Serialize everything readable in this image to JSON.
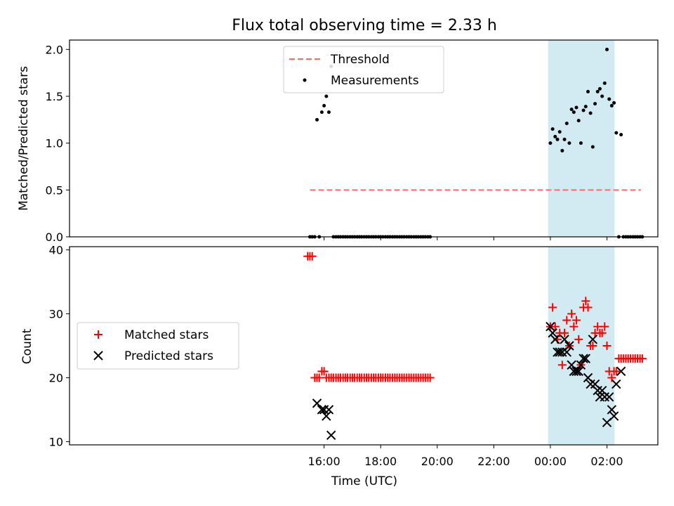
{
  "figure_title": "Flux total observing time = 2.33 h",
  "colors": {
    "threshold": "#ff6b6b",
    "measurement": "#000000",
    "matched": "#ff0000",
    "predicted": "#000000",
    "highlight": "#add8e6"
  },
  "chart_data": [
    {
      "type": "scatter",
      "title": "Flux total observing time = 2.33 h",
      "xlabel": "",
      "ylabel": "Matched/Predicted stars",
      "xlim": [
        -17.0,
        3.8
      ],
      "ylim": [
        0,
        2.1
      ],
      "grid": false,
      "legend_position": "top-center",
      "x_tick_values": [
        -8,
        -6,
        -4,
        -2,
        0,
        2
      ],
      "y_ticks": [
        "0.0",
        "0.5",
        "1.0",
        "1.5",
        "2.0"
      ],
      "highlight_span": [
        -0.08,
        2.27
      ],
      "threshold": {
        "name": "Threshold",
        "value": 0.5,
        "x_range": [
          -8.5,
          3.2
        ]
      },
      "series": [
        {
          "name": "Measurements",
          "marker": "dot",
          "points": [
            [
              -8.5,
              0
            ],
            [
              -8.42,
              0
            ],
            [
              -8.33,
              0
            ],
            [
              -8.25,
              1.25
            ],
            [
              -8.17,
              0
            ],
            [
              -8.08,
              1.33
            ],
            [
              -8.0,
              1.4
            ],
            [
              -7.92,
              1.5
            ],
            [
              -7.83,
              1.33
            ],
            [
              -7.75,
              1.82
            ],
            [
              -7.67,
              0
            ],
            [
              -7.58,
              0
            ],
            [
              -7.5,
              0
            ],
            [
              -7.42,
              0
            ],
            [
              -7.33,
              0
            ],
            [
              -7.25,
              0
            ],
            [
              -7.17,
              0
            ],
            [
              -7.08,
              0
            ],
            [
              -7.0,
              0
            ],
            [
              -6.92,
              0
            ],
            [
              -6.83,
              0
            ],
            [
              -6.75,
              0
            ],
            [
              -6.67,
              0
            ],
            [
              -6.58,
              0
            ],
            [
              -6.5,
              0
            ],
            [
              -6.42,
              0
            ],
            [
              -6.33,
              0
            ],
            [
              -6.25,
              0
            ],
            [
              -6.17,
              0
            ],
            [
              -6.08,
              0
            ],
            [
              -6.0,
              0
            ],
            [
              -5.92,
              0
            ],
            [
              -5.83,
              0
            ],
            [
              -5.75,
              0
            ],
            [
              -5.67,
              0
            ],
            [
              -5.58,
              0
            ],
            [
              -5.5,
              0
            ],
            [
              -5.42,
              0
            ],
            [
              -5.33,
              0
            ],
            [
              -5.25,
              0
            ],
            [
              -5.17,
              0
            ],
            [
              -5.08,
              0
            ],
            [
              -5.0,
              0
            ],
            [
              -4.92,
              0
            ],
            [
              -4.83,
              0
            ],
            [
              -4.75,
              0
            ],
            [
              -4.67,
              0
            ],
            [
              -4.58,
              0
            ],
            [
              -4.5,
              0
            ],
            [
              -4.42,
              0
            ],
            [
              -4.33,
              0
            ],
            [
              -4.25,
              0
            ],
            [
              0.0,
              1.0
            ],
            [
              0.08,
              1.15
            ],
            [
              0.17,
              1.07
            ],
            [
              0.25,
              1.04
            ],
            [
              0.33,
              1.12
            ],
            [
              0.42,
              0.92
            ],
            [
              0.5,
              1.04
            ],
            [
              0.58,
              1.21
            ],
            [
              0.67,
              1.0
            ],
            [
              0.75,
              1.36
            ],
            [
              0.83,
              1.33
            ],
            [
              0.92,
              1.38
            ],
            [
              1.0,
              1.24
            ],
            [
              1.08,
              1.0
            ],
            [
              1.17,
              1.35
            ],
            [
              1.25,
              1.39
            ],
            [
              1.33,
              1.55
            ],
            [
              1.42,
              1.32
            ],
            [
              1.5,
              0.96
            ],
            [
              1.58,
              1.42
            ],
            [
              1.67,
              1.55
            ],
            [
              1.75,
              1.58
            ],
            [
              1.83,
              1.5
            ],
            [
              1.92,
              1.64
            ],
            [
              2.0,
              2.0
            ],
            [
              2.08,
              1.47
            ],
            [
              2.17,
              1.4
            ],
            [
              2.25,
              1.43
            ],
            [
              2.33,
              1.11
            ],
            [
              2.42,
              0
            ],
            [
              2.5,
              1.09
            ],
            [
              2.58,
              0
            ],
            [
              2.67,
              0
            ],
            [
              2.75,
              0
            ],
            [
              2.83,
              0
            ],
            [
              2.92,
              0
            ],
            [
              3.0,
              0
            ],
            [
              3.08,
              0
            ],
            [
              3.17,
              0
            ],
            [
              3.25,
              0
            ]
          ]
        }
      ]
    },
    {
      "type": "scatter",
      "xlabel": "Time (UTC)",
      "ylabel": "Count",
      "xlim": [
        -17.0,
        3.8
      ],
      "ylim": [
        9.5,
        40.5
      ],
      "grid": false,
      "legend_position": "center-left",
      "x_ticks": [
        "16:00",
        "18:00",
        "20:00",
        "22:00",
        "00:00",
        "02:00"
      ],
      "x_tick_values": [
        -8,
        -6,
        -4,
        -2,
        0,
        2
      ],
      "y_ticks": [
        "10",
        "20",
        "30",
        "40"
      ],
      "highlight_span": [
        -0.08,
        2.27
      ],
      "series": [
        {
          "name": "Matched stars",
          "marker": "plus",
          "points": [
            [
              -8.58,
              39
            ],
            [
              -8.5,
              39
            ],
            [
              -8.42,
              39
            ],
            [
              -8.33,
              20
            ],
            [
              -8.25,
              20
            ],
            [
              -8.17,
              20
            ],
            [
              -8.08,
              21
            ],
            [
              -8.0,
              21
            ],
            [
              -7.92,
              20
            ],
            [
              -7.83,
              20
            ],
            [
              -7.75,
              20
            ],
            [
              -7.67,
              20
            ],
            [
              -7.58,
              20
            ],
            [
              -7.5,
              20
            ],
            [
              -7.42,
              20
            ],
            [
              -7.33,
              20
            ],
            [
              -7.25,
              20
            ],
            [
              -7.17,
              20
            ],
            [
              -7.08,
              20
            ],
            [
              -7.0,
              20
            ],
            [
              -6.92,
              20
            ],
            [
              -6.83,
              20
            ],
            [
              -6.75,
              20
            ],
            [
              -6.67,
              20
            ],
            [
              -6.58,
              20
            ],
            [
              -6.5,
              20
            ],
            [
              -6.42,
              20
            ],
            [
              -6.33,
              20
            ],
            [
              -6.25,
              20
            ],
            [
              -6.17,
              20
            ],
            [
              -6.08,
              20
            ],
            [
              -6.0,
              20
            ],
            [
              -5.92,
              20
            ],
            [
              -5.83,
              20
            ],
            [
              -5.75,
              20
            ],
            [
              -5.67,
              20
            ],
            [
              -5.58,
              20
            ],
            [
              -5.5,
              20
            ],
            [
              -5.42,
              20
            ],
            [
              -5.33,
              20
            ],
            [
              -5.25,
              20
            ],
            [
              -5.17,
              20
            ],
            [
              -5.08,
              20
            ],
            [
              -5.0,
              20
            ],
            [
              -4.92,
              20
            ],
            [
              -4.83,
              20
            ],
            [
              -4.75,
              20
            ],
            [
              -4.67,
              20
            ],
            [
              -4.58,
              20
            ],
            [
              -4.5,
              20
            ],
            [
              -4.42,
              20
            ],
            [
              -4.33,
              20
            ],
            [
              -4.25,
              20
            ],
            [
              0.0,
              28
            ],
            [
              0.08,
              31
            ],
            [
              0.17,
              28
            ],
            [
              0.25,
              26
            ],
            [
              0.33,
              27
            ],
            [
              0.42,
              22
            ],
            [
              0.5,
              27
            ],
            [
              0.58,
              29
            ],
            [
              0.67,
              25
            ],
            [
              0.75,
              30
            ],
            [
              0.83,
              28
            ],
            [
              0.92,
              29
            ],
            [
              1.0,
              26
            ],
            [
              1.08,
              22
            ],
            [
              1.17,
              31
            ],
            [
              1.25,
              32
            ],
            [
              1.33,
              31
            ],
            [
              1.42,
              25
            ],
            [
              1.5,
              25
            ],
            [
              1.58,
              27
            ],
            [
              1.67,
              28
            ],
            [
              1.75,
              27
            ],
            [
              1.83,
              27
            ],
            [
              1.92,
              28
            ],
            [
              2.0,
              25
            ],
            [
              2.08,
              21
            ],
            [
              2.17,
              20
            ],
            [
              2.25,
              21
            ],
            [
              2.33,
              21
            ],
            [
              2.42,
              23
            ],
            [
              2.5,
              23
            ],
            [
              2.58,
              23
            ],
            [
              2.67,
              23
            ],
            [
              2.75,
              23
            ],
            [
              2.83,
              23
            ],
            [
              2.92,
              23
            ],
            [
              3.0,
              23
            ],
            [
              3.08,
              23
            ],
            [
              3.17,
              23
            ],
            [
              3.25,
              23
            ]
          ]
        },
        {
          "name": "Predicted stars",
          "marker": "x",
          "points": [
            [
              -8.25,
              16
            ],
            [
              -8.08,
              15
            ],
            [
              -7.92,
              14
            ],
            [
              -7.83,
              15
            ],
            [
              -7.75,
              11
            ],
            [
              -8.0,
              15
            ],
            [
              0.0,
              28
            ],
            [
              0.08,
              27
            ],
            [
              0.17,
              26
            ],
            [
              0.25,
              24
            ],
            [
              0.33,
              24
            ],
            [
              0.42,
              24
            ],
            [
              0.5,
              26
            ],
            [
              0.58,
              24
            ],
            [
              0.67,
              25
            ],
            [
              0.75,
              22
            ],
            [
              0.83,
              21
            ],
            [
              0.92,
              21
            ],
            [
              1.0,
              21
            ],
            [
              1.08,
              22
            ],
            [
              1.17,
              23
            ],
            [
              1.25,
              23
            ],
            [
              1.33,
              20
            ],
            [
              1.42,
              19
            ],
            [
              1.5,
              26
            ],
            [
              1.58,
              19
            ],
            [
              1.67,
              18
            ],
            [
              1.75,
              17
            ],
            [
              1.83,
              18
            ],
            [
              1.92,
              17
            ],
            [
              2.0,
              13
            ],
            [
              2.08,
              17
            ],
            [
              2.17,
              15
            ],
            [
              2.25,
              14
            ],
            [
              2.33,
              19
            ],
            [
              2.5,
              21
            ]
          ]
        }
      ]
    }
  ]
}
